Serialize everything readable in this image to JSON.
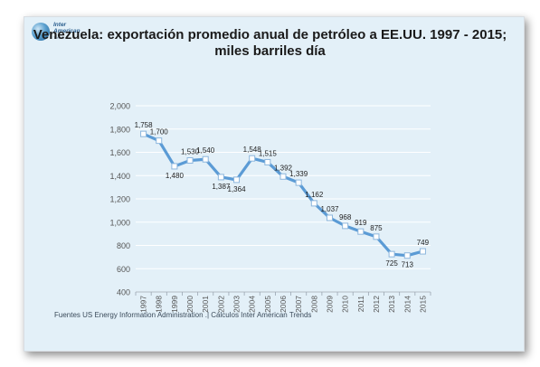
{
  "logo": {
    "line1": "Inter",
    "line2": "American",
    "line3": "Trends"
  },
  "title": {
    "line1": "Venezuela: exportación promedio anual de petróleo a EE.UU. 1997 - 2015;",
    "line2": "miles barriles día"
  },
  "source": "Fuentes US Energy Information Administration .| Cálculos Inter American Trends",
  "colors": {
    "series": "#5b9bd5",
    "marker_fill": "#ffffff",
    "grid": "#ffffff",
    "axis_text": "#555555",
    "label_text": "#222222"
  },
  "chart_data": {
    "type": "line",
    "title": "Venezuela: exportación promedio anual de petróleo a EE.UU. 1997 - 2015; miles barriles día",
    "categories": [
      "1997",
      "1998",
      "1999",
      "2000",
      "2001",
      "2002",
      "2003",
      "2004",
      "2005",
      "2006",
      "2007",
      "2008",
      "2009",
      "2010",
      "2011",
      "2012",
      "2013",
      "2014",
      "2015"
    ],
    "series": [
      {
        "values": [
          1758,
          1700,
          1480,
          1530,
          1540,
          1387,
          1364,
          1548,
          1515,
          1392,
          1339,
          1162,
          1037,
          968,
          919,
          875,
          725,
          713,
          749
        ]
      }
    ],
    "value_labels": [
      "1,758",
      "1,700",
      "1,480",
      "1,530",
      "1,540",
      "1,387",
      "1,364",
      "1,548",
      "1,515",
      "1,392",
      "1,339",
      "1,162",
      "1,037",
      "968",
      "919",
      "875",
      "725",
      "713",
      "749"
    ],
    "label_position": [
      "above",
      "above",
      "below",
      "above",
      "above",
      "below",
      "below",
      "above",
      "above",
      "above",
      "above",
      "above",
      "above",
      "above",
      "above",
      "above",
      "below",
      "below",
      "above"
    ],
    "ylim": [
      400,
      2000
    ],
    "yticks": [
      400,
      600,
      800,
      1000,
      1200,
      1400,
      1600,
      1800,
      2000
    ],
    "ytick_labels": [
      "400",
      "600",
      "800",
      "1,000",
      "1,200",
      "1,400",
      "1,600",
      "1,800",
      "2,000"
    ],
    "xlabel": "",
    "ylabel": "",
    "grid": true,
    "legend": false
  }
}
